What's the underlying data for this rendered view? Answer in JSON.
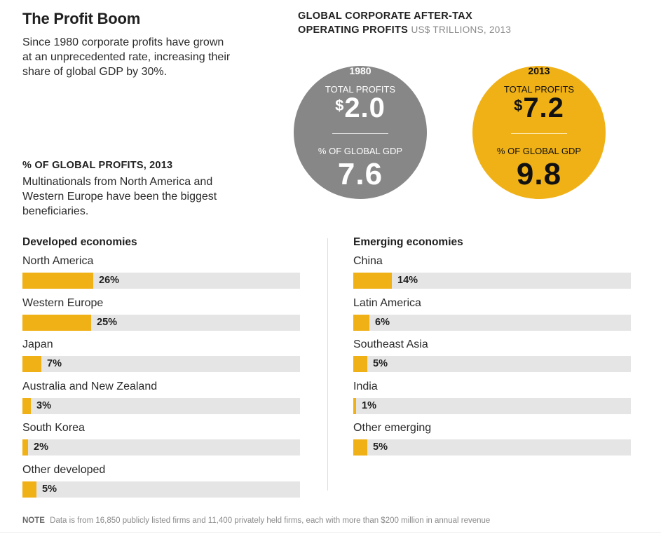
{
  "header": {
    "title": "The Profit Boom",
    "intro": "Since 1980 corporate profits have grown at an unprecedented rate, increasing their share of global GDP by 30%."
  },
  "profits_panel": {
    "heading": "GLOBAL CORPORATE AFTER-TAX OPERATING PROFITS",
    "subheading": "US$ TRILLIONS, 2013",
    "circles": [
      {
        "year": "1980",
        "profits_label": "TOTAL PROFITS",
        "currency": "$",
        "profits_value": "2.0",
        "gdp_label": "% OF GLOBAL GDP",
        "gdp_value": "7.6",
        "color": "#878787"
      },
      {
        "year": "2013",
        "profits_label": "TOTAL PROFITS",
        "currency": "$",
        "profits_value": "7.2",
        "gdp_label": "% OF GLOBAL GDP",
        "gdp_value": "9.8",
        "color": "#f0b116"
      }
    ]
  },
  "share_section": {
    "heading": "% OF GLOBAL PROFITS, 2013",
    "description": "Multinationals from North America and Western Europe have been the biggest beneficiaries."
  },
  "chart_data": {
    "type": "bar",
    "orientation": "horizontal",
    "title": "% OF GLOBAL PROFITS, 2013",
    "unit": "%",
    "xlim": [
      0,
      100
    ],
    "bar_color": "#f0b116",
    "track_color": "#e5e5e5",
    "groups": [
      {
        "name": "Developed economies",
        "categories": [
          "North America",
          "Western Europe",
          "Japan",
          "Australia and New Zealand",
          "South Korea",
          "Other developed"
        ],
        "values": [
          26,
          25,
          7,
          3,
          2,
          5
        ],
        "labels": [
          "26%",
          "25%",
          "7%",
          "3%",
          "2%",
          "5%"
        ]
      },
      {
        "name": "Emerging economies",
        "categories": [
          "China",
          "Latin America",
          "Southeast Asia",
          "India",
          "Other emerging"
        ],
        "values": [
          14,
          6,
          5,
          1,
          5
        ],
        "labels": [
          "14%",
          "6%",
          "5%",
          "1%",
          "5%"
        ]
      }
    ]
  },
  "footer": {
    "note_label": "NOTE",
    "note_text": "Data is from 16,850 publicly listed firms and 11,400 privately held firms, each with more than $200 million in annual revenue"
  }
}
